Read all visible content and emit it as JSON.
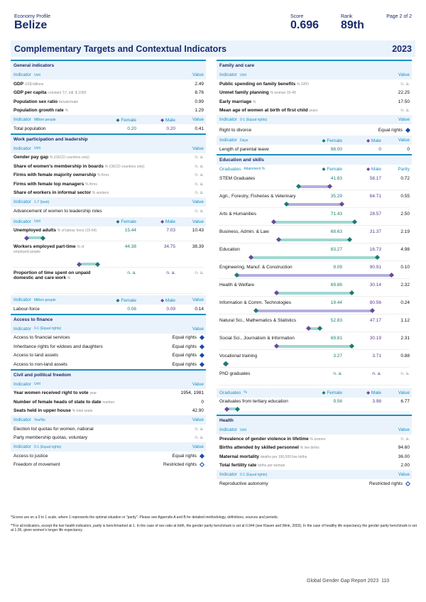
{
  "header": {
    "profile_label": "Economy Profile",
    "country": "Belize",
    "score_label": "Score",
    "score": "0.696",
    "rank_label": "Rank",
    "rank": "89th",
    "page": "Page 2 of 2"
  },
  "title": {
    "text": "Complementary Targets and Contextual Indicators",
    "year": "2023"
  },
  "general": {
    "title": "General indicators",
    "head": {
      "indicator": "Indicator",
      "unit": "Unit",
      "value": "Value"
    },
    "rows": [
      {
        "name": "GDP",
        "unit": "US$ billions",
        "value": "2.49"
      },
      {
        "name": "GDP per capita",
        "unit": "constant '17, intl. $ 1000",
        "value": "8.76"
      },
      {
        "name": "Population sex ratio",
        "unit": "female/male",
        "value": "0.99"
      },
      {
        "name": "Population growth rate",
        "unit": "%",
        "value": "1.29"
      }
    ],
    "head2": {
      "indicator": "Indicator",
      "unit": "Million people",
      "female": "Female",
      "male": "Male",
      "value": "Value"
    },
    "pop": {
      "name": "Total population",
      "female": "0.20",
      "male": "0.20",
      "value": "0.41"
    }
  },
  "work": {
    "title": "Work participation and leadership",
    "head": {
      "indicator": "Indicator",
      "unit": "Unit",
      "value": "Value"
    },
    "rows": [
      {
        "name": "Gender pay gap",
        "unit": "% (OECD countries only)",
        "value": "n. a."
      },
      {
        "name": "Share of women's membership in boards",
        "unit": "% (OECD countries only)",
        "value": "n. a."
      },
      {
        "name": "Firms with female majority ownership",
        "unit": "% firms",
        "value": "n. a."
      },
      {
        "name": "Firms with female top managers",
        "unit": "% firms",
        "value": "n. a."
      },
      {
        "name": "Share of workers in informal sector",
        "unit": "% workers",
        "value": "n. a."
      }
    ],
    "head2": {
      "indicator": "Indicator",
      "unit": "1-7 (best)",
      "value": "Value"
    },
    "adv": {
      "name": "Advancement of women to leadership roles",
      "value": "n. a."
    },
    "head3": {
      "indicator": "Indicator",
      "unit": "Unit",
      "female": "Female",
      "male": "Male",
      "value": "Value"
    },
    "fm": [
      {
        "name": "Unemployed adults",
        "unit": "% of labour force (15-64)",
        "female": "15.44",
        "male": "7.03",
        "value": "10.43"
      },
      {
        "name": "Workers employed part-time",
        "unit": "% of employed people",
        "female": "44.38",
        "male": "34.75",
        "value": "38.39"
      },
      {
        "name": "Proportion of time spent on unpaid domestic and care work",
        "unit": "%",
        "female": "n. a.",
        "male": "n. a.",
        "value": "n. a."
      }
    ],
    "head4": {
      "indicator": "Indicator",
      "unit": "Million people",
      "female": "Female",
      "male": "Male",
      "value": "Value"
    },
    "labour": {
      "name": "Labour-force",
      "female": "0.06",
      "male": "0.09",
      "value": "0.14"
    }
  },
  "finance": {
    "title": "Access to finance",
    "head": {
      "indicator": "Indicator",
      "unit": "0-1 (Equal rights)",
      "value": "Value"
    },
    "rows": [
      {
        "name": "Access to financial services",
        "value": "Equal rights"
      },
      {
        "name": "Inheritance rights for widows and daughters",
        "value": "Equal rights"
      },
      {
        "name": "Access to land assets",
        "value": "Equal rights"
      },
      {
        "name": "Access to non-land assets",
        "value": "Equal rights"
      }
    ]
  },
  "civil": {
    "title": "Civil and political freedom",
    "head": {
      "indicator": "Indicator",
      "unit": "Unit",
      "value": "Value"
    },
    "rows": [
      {
        "name": "Year women received right to vote",
        "unit": "year",
        "value": "1954, 1981"
      },
      {
        "name": "Number of female heads of state to date",
        "unit": "number",
        "value": "0"
      },
      {
        "name": "Seats held in upper house",
        "unit": "% total seats",
        "value": "42.90"
      }
    ],
    "head2": {
      "indicator": "Indicator",
      "unit": "Yes/No",
      "value": "Value"
    },
    "rows2": [
      {
        "name": "Election list quotas for women, national",
        "value": "n. a."
      },
      {
        "name": "Party membership quotas, voluntary",
        "value": "n. a."
      }
    ],
    "head3": {
      "indicator": "Indicator",
      "unit": "0-1 (Equal rights)",
      "value": "Value"
    },
    "rows3": [
      {
        "name": "Access to justice",
        "value": "Equal rights"
      },
      {
        "name": "Freedom of movement",
        "value": "Restricted rights"
      }
    ]
  },
  "family": {
    "title": "Family and care",
    "head": {
      "indicator": "Indicator",
      "unit": "Unit",
      "value": "Value"
    },
    "rows": [
      {
        "name": "Public spending on family benefits",
        "unit": "% GPD",
        "value": "n. a."
      },
      {
        "name": "Unmet family planning",
        "unit": "% woman 15-49",
        "value": "22.25"
      },
      {
        "name": "Early marriage",
        "unit": "%",
        "value": "17.50"
      },
      {
        "name": "Mean age of women at birth of first child",
        "unit": "years",
        "value": "n. a."
      }
    ],
    "head2": {
      "indicator": "Indicator",
      "unit": "0-1 (Equal rights)",
      "value": "Value"
    },
    "divorce": {
      "name": "Right to divorce",
      "value": "Equal rights"
    },
    "head3": {
      "indicator": "Indicator",
      "unit": "Days",
      "female": "Female",
      "male": "Male",
      "value": "Value"
    },
    "leave": {
      "name": "Length of parental leave",
      "female": "98.00",
      "male": "0",
      "value": "0"
    }
  },
  "education": {
    "title": "Education and skills",
    "head": {
      "indicator": "Graduates",
      "unit": "Attainment %",
      "female": "Female",
      "male": "Male",
      "value": "Parity"
    },
    "rows": [
      {
        "name": "STEM Graduates",
        "female": "41.83",
        "male": "58.17",
        "value": "0.72",
        "f": 41.83,
        "m": 58.17
      },
      {
        "name": "Agri., Forestry, Fisheries & Veterinary",
        "female": "35.29",
        "male": "64.71",
        "value": "0.55",
        "f": 35.29,
        "m": 64.71
      },
      {
        "name": "Arts & Humanities",
        "female": "71.43",
        "male": "28.57",
        "value": "2.50",
        "f": 71.43,
        "m": 28.57
      },
      {
        "name": "Business, Admin. & Law",
        "female": "68.63",
        "male": "31.37",
        "value": "2.19",
        "f": 68.63,
        "m": 31.37
      },
      {
        "name": "Education",
        "female": "83.27",
        "male": "16.73",
        "value": "4.98",
        "f": 83.27,
        "m": 16.73
      },
      {
        "name": "Engineering, Manuf. & Construction",
        "female": "9.09",
        "male": "90.91",
        "value": "0.10",
        "f": 9.09,
        "m": 90.91
      },
      {
        "name": "Health & Welfare",
        "female": "69.86",
        "male": "30.14",
        "value": "2.32",
        "f": 69.86,
        "m": 30.14
      },
      {
        "name": "Information & Comm. Technologies",
        "female": "19.44",
        "male": "80.56",
        "value": "0.24",
        "f": 19.44,
        "m": 80.56
      },
      {
        "name": "Natural Sci., Mathematics & Statistics",
        "female": "52.83",
        "male": "47.17",
        "value": "1.12",
        "f": 52.83,
        "m": 47.17
      },
      {
        "name": "Social Sci., Journalism & Information",
        "female": "69.81",
        "male": "30.19",
        "value": "2.31",
        "f": 69.81,
        "m": 30.19
      },
      {
        "name": "Vocational training",
        "female": "3.27",
        "male": "3.71",
        "value": "0.88",
        "f": 3.27,
        "m": 3.71
      },
      {
        "name": "PhD graduates",
        "female": "n. a.",
        "male": "n. a.",
        "value": "n. a."
      }
    ],
    "head2": {
      "indicator": "Graduates",
      "unit": "%",
      "female": "Female",
      "male": "Male",
      "value": "Value"
    },
    "tertiary": {
      "name": "Graduates from tertiary education",
      "female": "9.56",
      "male": "3.98",
      "value": "6.77"
    }
  },
  "health": {
    "title": "Health",
    "head": {
      "indicator": "Indicator",
      "unit": "Unit",
      "value": "Value"
    },
    "rows": [
      {
        "name": "Prevalence of gender violence in lifetime",
        "unit": "% women",
        "value": "n. a."
      },
      {
        "name": "Births attended by skilled personnel",
        "unit": "% live births",
        "value": "94.60"
      },
      {
        "name": "Maternal mortality",
        "unit": "deaths per 100,000 live births",
        "value": "36.00"
      },
      {
        "name": "Total fertility rate",
        "unit": "births per woman",
        "value": "2.00"
      }
    ],
    "head2": {
      "indicator": "Indicator",
      "unit": "0-1 (Equal rights)",
      "value": "Value"
    },
    "repro": {
      "name": "Reproductive autonomy",
      "value": "Restricted rights"
    }
  },
  "footnotes": {
    "n1": "*Scores are on a 0 to 1 scale, where 1 represents the optimal situation or \"parity\". Please see Appendix A and B for detailed methodology, definitions, sources and periods.",
    "n2": "**For all indicators, except the two health indicators, parity is benchmarked at 1. In the case of sex ratio at birth, the gender parity benchmark is set at 0.944 (see Klasen and Wink, 2003). In the case of healthy life expectancy the gender parity benchmark is set at 1.06, given women's longer life expectancy."
  },
  "footer": {
    "text": "Global Gender Gap Report 2023",
    "page_number": "110"
  },
  "colors": {
    "navy": "#1a2a6c",
    "accent": "#1a8fc4",
    "female": "#1e7a72",
    "male": "#6a4a9a",
    "panel": "#eaf3fb"
  }
}
